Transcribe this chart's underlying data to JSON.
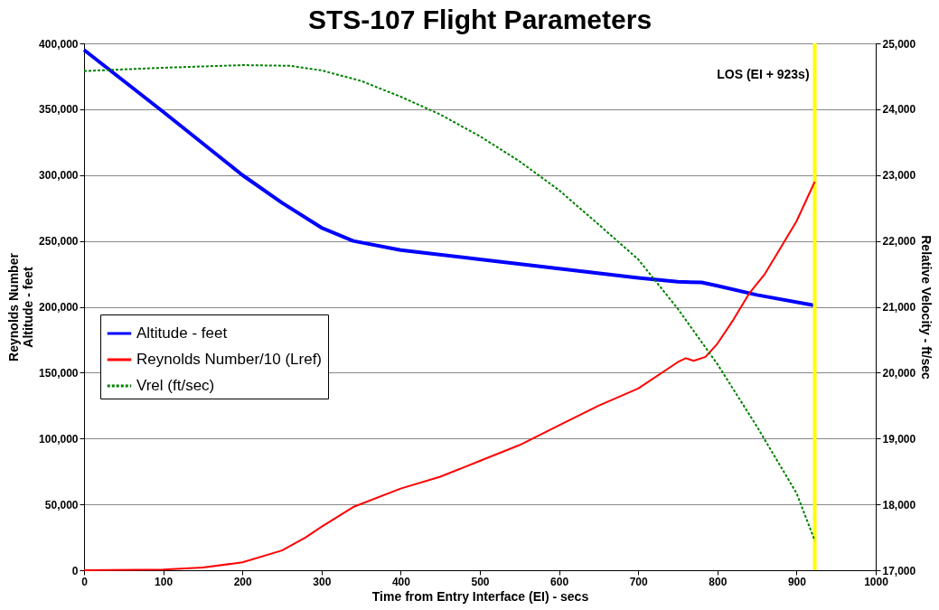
{
  "chart_data": {
    "type": "line",
    "title": "STS-107 Flight Parameters",
    "xlabel": "Time from Entry Interface (EI) - secs",
    "ylabel": "Reynolds Number\nAltitude - feet",
    "y2label": "Relative Velocity - ft/sec",
    "xlim": [
      0,
      1000
    ],
    "xticks": [
      0,
      100,
      200,
      300,
      400,
      500,
      600,
      700,
      800,
      900,
      1000
    ],
    "ylim": [
      0,
      400000
    ],
    "yticks": [
      {
        "value": 0,
        "label": "0"
      },
      {
        "value": 50000,
        "label": "50,000"
      },
      {
        "value": 100000,
        "label": "100,000"
      },
      {
        "value": 150000,
        "label": "150,000"
      },
      {
        "value": 200000,
        "label": "200,000"
      },
      {
        "value": 250000,
        "label": "250,000"
      },
      {
        "value": 300000,
        "label": "300,000"
      },
      {
        "value": 350000,
        "label": "350,000"
      },
      {
        "value": 400000,
        "label": "400,000"
      }
    ],
    "y2lim": [
      17000,
      25000
    ],
    "y2ticks": [
      {
        "value": 17000,
        "label": "17,000"
      },
      {
        "value": 18000,
        "label": "18,000"
      },
      {
        "value": 19000,
        "label": "19,000"
      },
      {
        "value": 20000,
        "label": "20,000"
      },
      {
        "value": 21000,
        "label": "21,000"
      },
      {
        "value": 22000,
        "label": "22,000"
      },
      {
        "value": 23000,
        "label": "23,000"
      },
      {
        "value": 24000,
        "label": "24,000"
      },
      {
        "value": 25000,
        "label": "25,000"
      }
    ],
    "grid": "y",
    "legend": "left",
    "marker": "none",
    "ref_lines": [
      {
        "axis": "x",
        "value": 923,
        "label": "LOS (EI + 923s)",
        "color": "#ffff00"
      }
    ],
    "series": [
      {
        "name": "Altitude - feet",
        "color": "#0000ff",
        "line_style": "solid",
        "x": [
          0,
          100,
          200,
          250,
          300,
          340,
          400,
          500,
          600,
          700,
          750,
          780,
          800,
          850,
          923
        ],
        "values": [
          395000,
          348000,
          300000,
          279000,
          260000,
          250000,
          243000,
          236000,
          229000,
          222000,
          219000,
          218500,
          216000,
          209000,
          201000
        ]
      },
      {
        "name": "Reynolds Number/10 (Lref)",
        "color": "#ff0000",
        "line_style": "solid",
        "x": [
          0,
          100,
          150,
          200,
          250,
          280,
          300,
          340,
          400,
          450,
          500,
          550,
          600,
          650,
          700,
          750,
          760,
          770,
          785,
          800,
          820,
          840,
          860,
          880,
          900,
          923
        ],
        "values": [
          0,
          500,
          2000,
          6000,
          15000,
          25000,
          33000,
          48000,
          62000,
          71000,
          83000,
          95000,
          110000,
          125000,
          138000,
          158000,
          161000,
          159000,
          162000,
          172000,
          190000,
          210000,
          225000,
          245000,
          265000,
          295000
        ]
      },
      {
        "name": "Vrel (ft/sec)",
        "color": "#008000",
        "line_style": "dashed",
        "axis": "y2",
        "x": [
          0,
          100,
          200,
          260,
          300,
          350,
          400,
          450,
          500,
          550,
          600,
          650,
          700,
          750,
          800,
          850,
          900,
          923
        ],
        "values": [
          24580,
          24630,
          24670,
          24660,
          24590,
          24430,
          24190,
          23920,
          23590,
          23210,
          22770,
          22250,
          21720,
          20970,
          20130,
          19180,
          18170,
          17450
        ]
      }
    ]
  }
}
